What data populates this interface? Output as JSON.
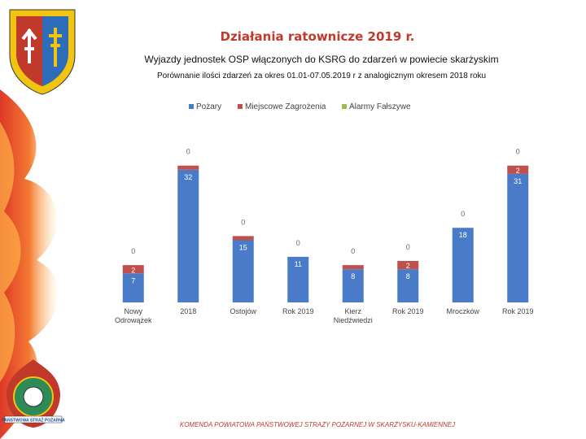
{
  "slide": {
    "title": "Działania ratownicze 2019 r.",
    "subtitle": "Wyjazdy jednostek OSP włączonych do KSRG do zdarzeń w powiecie skarżyskim",
    "description": "Porównanie ilości zdarzeń za okres 01.01-07.05.2019 r z analogicznym okresem 2018 roku",
    "footer": "Komenda Powiatowa Państwowej Straży Pożarnej w Skarżysku-Kamiennej",
    "emblem_text": "PAŃSTWOWA STRAŻ POŻARNA"
  },
  "colors": {
    "pozary": "#4a7bc8",
    "miejscowe": "#c0504d",
    "alarmy": "#9bbb59",
    "title": "#c0392b"
  },
  "chart_data": {
    "type": "bar",
    "stacked": true,
    "legend_position": "top",
    "grid": false,
    "ylim": [
      0,
      40
    ],
    "categories": [
      "Nowy Odrowążek",
      "2018",
      "Ostojów",
      "Rok 2019",
      "Kierz Niedźwiedzi",
      "Rok 2019",
      "Mroczków",
      "Rok 2019"
    ],
    "series": [
      {
        "name": "Pożary",
        "values": [
          7,
          32,
          15,
          11,
          8,
          8,
          18,
          31
        ]
      },
      {
        "name": "Miejscowe Zagrożenia",
        "values": [
          2,
          1,
          1,
          0,
          1,
          2,
          0,
          2
        ]
      },
      {
        "name": "Alarmy Fałszywe",
        "values": [
          0,
          0,
          0,
          0,
          0,
          0,
          0,
          0
        ]
      }
    ]
  }
}
